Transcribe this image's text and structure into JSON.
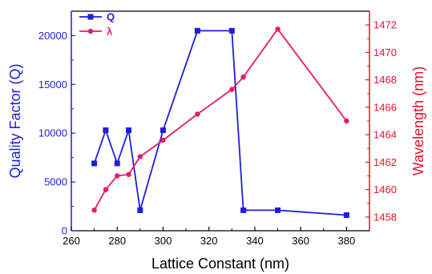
{
  "chart_data": {
    "type": "line",
    "xlabel": "Lattice Constant (nm)",
    "ylabel_left": "Quality Factor (Q)",
    "ylabel_right": "Wavelength (nm)",
    "xlim": [
      260,
      390
    ],
    "x_ticks": [
      260,
      280,
      300,
      320,
      340,
      360,
      380
    ],
    "y_left_lim": [
      0,
      22500
    ],
    "y_left_ticks": [
      0,
      5000,
      10000,
      15000,
      20000
    ],
    "y_right_lim": [
      1457,
      1473
    ],
    "y_right_ticks": [
      1458,
      1460,
      1462,
      1464,
      1466,
      1468,
      1470,
      1472
    ],
    "legend_position": "top-left",
    "grid": false,
    "colors": {
      "left_axis": "#1f1fd6",
      "right_axis": "#e0142b",
      "Q": "#1f1fd6",
      "lambda": "#e8196e"
    },
    "series": [
      {
        "name": "Q",
        "axis": "left",
        "marker": "square",
        "x": [
          270,
          275,
          280,
          285,
          290,
          300,
          315,
          330,
          335,
          350,
          380
        ],
        "y": [
          6900,
          10300,
          6900,
          10300,
          2100,
          10300,
          20500,
          20500,
          2100,
          2100,
          1600
        ]
      },
      {
        "name": "λ",
        "axis": "right",
        "marker": "circle",
        "x": [
          270,
          275,
          280,
          285,
          290,
          300,
          315,
          330,
          335,
          350,
          380
        ],
        "y": [
          1458.5,
          1460.0,
          1461.0,
          1461.1,
          1462.4,
          1463.6,
          1465.5,
          1467.3,
          1468.2,
          1471.7,
          1465.0
        ]
      }
    ]
  }
}
